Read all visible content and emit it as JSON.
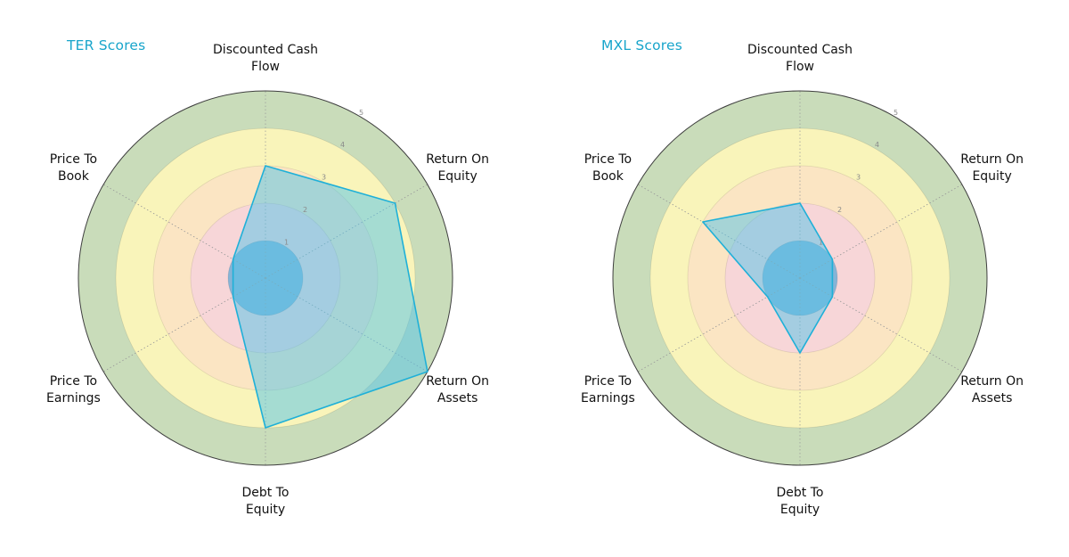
{
  "page": {
    "background_color": "#ffffff"
  },
  "chart_data": [
    {
      "type": "radar",
      "title": "TER Scores",
      "title_color": "#18a5cb",
      "categories": [
        "Discounted Cash Flow",
        "Return On Equity",
        "Return On Assets",
        "Debt To Equity",
        "Price To Earnings",
        "Price To Book"
      ],
      "category_lines": [
        [
          "Discounted Cash",
          "Flow"
        ],
        [
          "Return On",
          "Equity"
        ],
        [
          "Return On",
          "Assets"
        ],
        [
          "Debt To",
          "Equity"
        ],
        [
          "Price To",
          "Earnings"
        ],
        [
          "Price To",
          "Book"
        ]
      ],
      "values": [
        3,
        4,
        5,
        4,
        1,
        1
      ],
      "r_max": 5,
      "ticks": [
        1,
        2,
        3,
        4,
        5
      ],
      "tick_color": "#8a8a8a",
      "ring_colors": [
        "#85b4d6",
        "#f7d6d8",
        "#fbe5c3",
        "#f9f4ba",
        "#c9dcba"
      ],
      "fill_color": "rgba(82,196,233,0.5)",
      "stroke_color": "#1fb0d8",
      "grid": true,
      "legend": "none"
    },
    {
      "type": "radar",
      "title": "MXL Scores",
      "title_color": "#18a5cb",
      "categories": [
        "Discounted Cash Flow",
        "Return On Equity",
        "Return On Assets",
        "Debt To Equity",
        "Price To Earnings",
        "Price To Book"
      ],
      "category_lines": [
        [
          "Discounted Cash",
          "Flow"
        ],
        [
          "Return On",
          "Equity"
        ],
        [
          "Return On",
          "Assets"
        ],
        [
          "Debt To",
          "Equity"
        ],
        [
          "Price To",
          "Earnings"
        ],
        [
          "Price To",
          "Book"
        ]
      ],
      "values": [
        2,
        1,
        1,
        2,
        1,
        3
      ],
      "r_max": 5,
      "ticks": [
        1,
        2,
        3,
        4,
        5
      ],
      "tick_color": "#8a8a8a",
      "ring_colors": [
        "#85b4d6",
        "#f7d6d8",
        "#fbe5c3",
        "#f9f4ba",
        "#c9dcba"
      ],
      "fill_color": "rgba(82,196,233,0.5)",
      "stroke_color": "#1fb0d8",
      "grid": true,
      "legend": "none"
    }
  ]
}
